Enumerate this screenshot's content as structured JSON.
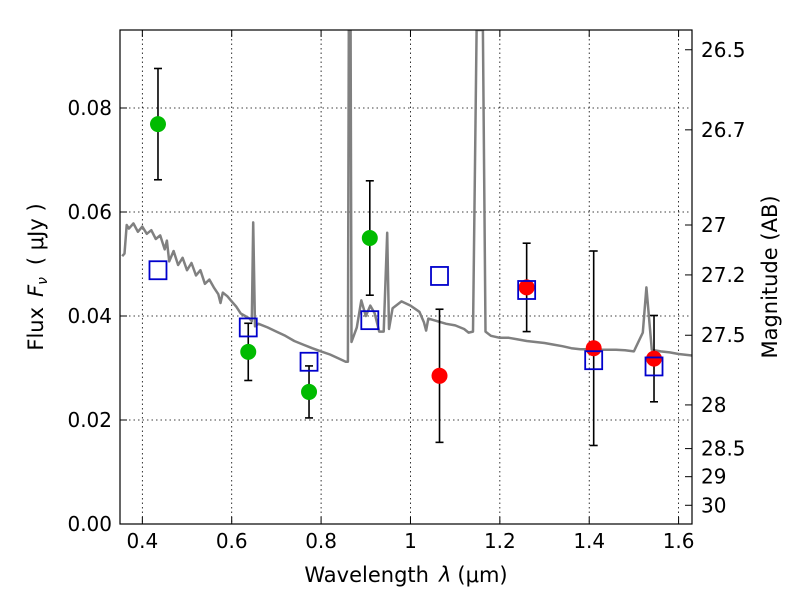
{
  "chart_data": {
    "type": "scatter",
    "xlabel_prefix": "Wavelength",
    "xlabel_symbol": "λ",
    "xlabel_unit": "(μm)",
    "ylabel_prefix": "Flux",
    "ylabel_symbol": "F",
    "ylabel_subscript": "ν",
    "ylabel_unit": "( μJy )",
    "y2label": "Magnitude (AB)",
    "xlim": [
      0.35,
      1.63
    ],
    "ylim": [
      0,
      0.095
    ],
    "grid": true,
    "x_ticks": [
      0.4,
      0.6,
      0.8,
      1.0,
      1.2,
      1.4,
      1.6
    ],
    "x_tick_labels": [
      "0.4",
      "0.6",
      "0.8",
      "1",
      "1.2",
      "1.4",
      "1.6"
    ],
    "y_ticks": [
      0.0,
      0.02,
      0.04,
      0.06,
      0.08
    ],
    "y_tick_labels": [
      "0.00",
      "0.02",
      "0.04",
      "0.06",
      "0.08"
    ],
    "mag_ticks": [
      {
        "label": "26.5",
        "flux": 0.0912
      },
      {
        "label": "26.7",
        "flux": 0.0758
      },
      {
        "label": "27",
        "flux": 0.0575
      },
      {
        "label": "27.2",
        "flux": 0.0479
      },
      {
        "label": "27.5",
        "flux": 0.0363
      },
      {
        "label": "28",
        "flux": 0.0229
      },
      {
        "label": "28.5",
        "flux": 0.0145
      },
      {
        "label": "29",
        "flux": 0.0091
      },
      {
        "label": "30",
        "flux": 0.0036
      }
    ],
    "series": [
      {
        "color": "#808080",
        "style": "line",
        "points": [
          [
            0.355,
            0.0515
          ],
          [
            0.36,
            0.052
          ],
          [
            0.365,
            0.0575
          ],
          [
            0.37,
            0.0568
          ],
          [
            0.38,
            0.0578
          ],
          [
            0.39,
            0.0562
          ],
          [
            0.4,
            0.0572
          ],
          [
            0.41,
            0.0558
          ],
          [
            0.42,
            0.0565
          ],
          [
            0.43,
            0.0548
          ],
          [
            0.44,
            0.0555
          ],
          [
            0.45,
            0.0528
          ],
          [
            0.455,
            0.0545
          ],
          [
            0.46,
            0.0505
          ],
          [
            0.47,
            0.0525
          ],
          [
            0.48,
            0.0498
          ],
          [
            0.49,
            0.0512
          ],
          [
            0.5,
            0.0488
          ],
          [
            0.51,
            0.0502
          ],
          [
            0.52,
            0.0478
          ],
          [
            0.53,
            0.0488
          ],
          [
            0.54,
            0.0462
          ],
          [
            0.55,
            0.047
          ],
          [
            0.56,
            0.0455
          ],
          [
            0.57,
            0.0442
          ],
          [
            0.575,
            0.0425
          ],
          [
            0.58,
            0.0445
          ],
          [
            0.59,
            0.0438
          ],
          [
            0.6,
            0.0428
          ],
          [
            0.61,
            0.0418
          ],
          [
            0.62,
            0.0405
          ],
          [
            0.63,
            0.04
          ],
          [
            0.64,
            0.0395
          ],
          [
            0.645,
            0.039
          ],
          [
            0.648,
            0.058
          ],
          [
            0.652,
            0.038
          ],
          [
            0.66,
            0.0385
          ],
          [
            0.68,
            0.0378
          ],
          [
            0.7,
            0.037
          ],
          [
            0.72,
            0.0362
          ],
          [
            0.74,
            0.0352
          ],
          [
            0.76,
            0.0345
          ],
          [
            0.78,
            0.0338
          ],
          [
            0.8,
            0.0332
          ],
          [
            0.82,
            0.0326
          ],
          [
            0.84,
            0.0318
          ],
          [
            0.855,
            0.0312
          ],
          [
            0.86,
            0.0312
          ],
          [
            0.862,
            0.095
          ],
          [
            0.866,
            0.095
          ],
          [
            0.868,
            0.035
          ],
          [
            0.88,
            0.0378
          ],
          [
            0.89,
            0.043
          ],
          [
            0.9,
            0.04
          ],
          [
            0.91,
            0.042
          ],
          [
            0.92,
            0.0405
          ],
          [
            0.93,
            0.037
          ],
          [
            0.94,
            0.037
          ],
          [
            0.948,
            0.056
          ],
          [
            0.952,
            0.0375
          ],
          [
            0.96,
            0.0415
          ],
          [
            0.98,
            0.0428
          ],
          [
            1.0,
            0.042
          ],
          [
            1.02,
            0.0408
          ],
          [
            1.03,
            0.0388
          ],
          [
            1.035,
            0.0372
          ],
          [
            1.04,
            0.0395
          ],
          [
            1.06,
            0.039
          ],
          [
            1.08,
            0.0385
          ],
          [
            1.1,
            0.0382
          ],
          [
            1.12,
            0.0375
          ],
          [
            1.13,
            0.0368
          ],
          [
            1.14,
            0.037
          ],
          [
            1.148,
            0.095
          ],
          [
            1.162,
            0.095
          ],
          [
            1.168,
            0.037
          ],
          [
            1.18,
            0.0362
          ],
          [
            1.2,
            0.0358
          ],
          [
            1.22,
            0.0358
          ],
          [
            1.24,
            0.0355
          ],
          [
            1.26,
            0.0352
          ],
          [
            1.28,
            0.035
          ],
          [
            1.3,
            0.0348
          ],
          [
            1.32,
            0.0345
          ],
          [
            1.34,
            0.0342
          ],
          [
            1.36,
            0.0338
          ],
          [
            1.38,
            0.0336
          ],
          [
            1.4,
            0.0336
          ],
          [
            1.42,
            0.0335
          ],
          [
            1.44,
            0.0335
          ],
          [
            1.46,
            0.0335
          ],
          [
            1.48,
            0.0334
          ],
          [
            1.5,
            0.0332
          ],
          [
            1.52,
            0.0368
          ],
          [
            1.528,
            0.0455
          ],
          [
            1.536,
            0.0375
          ],
          [
            1.54,
            0.0335
          ],
          [
            1.56,
            0.0332
          ],
          [
            1.58,
            0.033
          ],
          [
            1.6,
            0.0327
          ],
          [
            1.63,
            0.0324
          ]
        ]
      },
      {
        "color": "#00bb00",
        "style": "points",
        "points": [
          {
            "x": 0.435,
            "y": 0.0769,
            "yerr": 0.0107
          },
          {
            "x": 0.637,
            "y": 0.0331,
            "yerr": 0.0055
          },
          {
            "x": 0.773,
            "y": 0.0254,
            "yerr": 0.005
          },
          {
            "x": 0.909,
            "y": 0.055,
            "yerr": 0.011
          }
        ]
      },
      {
        "color": "#ff0000",
        "style": "points",
        "points": [
          {
            "x": 1.065,
            "y": 0.0285,
            "yerr": 0.0128
          },
          {
            "x": 1.26,
            "y": 0.0455,
            "yerr": 0.0085
          },
          {
            "x": 1.41,
            "y": 0.0338,
            "yerr": 0.0187
          },
          {
            "x": 1.545,
            "y": 0.0318,
            "yerr": 0.0083
          }
        ]
      },
      {
        "color": "#0000cc",
        "style": "squares",
        "points": [
          {
            "x": 0.435,
            "y": 0.0488
          },
          {
            "x": 0.637,
            "y": 0.0378
          },
          {
            "x": 0.773,
            "y": 0.0312
          },
          {
            "x": 0.909,
            "y": 0.0392
          },
          {
            "x": 1.065,
            "y": 0.0477
          },
          {
            "x": 1.26,
            "y": 0.045
          },
          {
            "x": 1.41,
            "y": 0.0315
          },
          {
            "x": 1.545,
            "y": 0.0303
          }
        ]
      }
    ]
  }
}
